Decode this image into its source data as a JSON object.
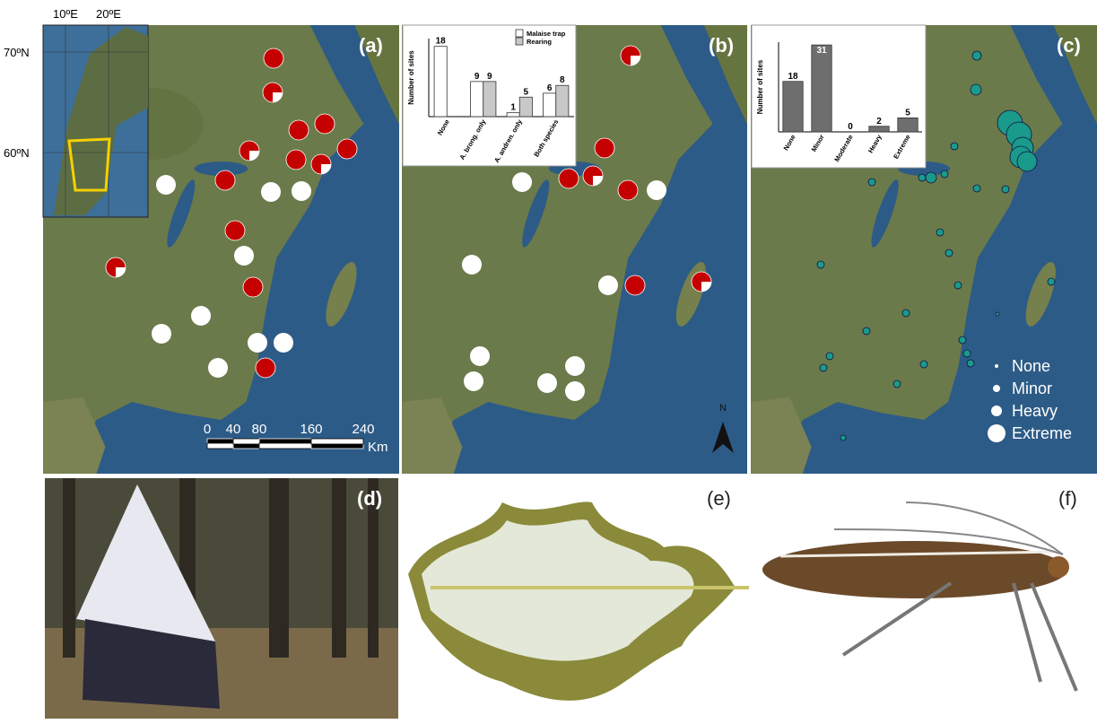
{
  "panels": [
    "(a)",
    "(b)",
    "(c)",
    "(d)",
    "(e)",
    "(f)"
  ],
  "inset": {
    "lon": [
      "10ºE",
      "20ºE"
    ],
    "lat": [
      "70ºN",
      "60ºN"
    ]
  },
  "scale": {
    "ticks": [
      0,
      40,
      80,
      160,
      240
    ],
    "unit": "Km"
  },
  "north": "N",
  "legend": [
    "None",
    "Minor",
    "Heavy",
    "Extreme"
  ],
  "chart_data": [
    {
      "type": "bar",
      "ylabel": "Number of sites",
      "categories": [
        "None",
        "A. brong. only",
        "A. andren. only",
        "Both species"
      ],
      "series": [
        {
          "name": "Malaise trap",
          "color": "#ffffff",
          "values": [
            18,
            9,
            1,
            6
          ]
        },
        {
          "name": "Rearing",
          "color": "#c8c8c8",
          "values": [
            null,
            9,
            5,
            8
          ]
        }
      ],
      "ylim": [
        0,
        20
      ]
    },
    {
      "type": "bar",
      "ylabel": "Number of sites",
      "categories": [
        "None",
        "Minor",
        "Moderate",
        "Heavy",
        "Extreme"
      ],
      "values": [
        18,
        31,
        0,
        2,
        5
      ],
      "color": "#6e6e6e",
      "ylim": [
        0,
        32
      ]
    }
  ]
}
